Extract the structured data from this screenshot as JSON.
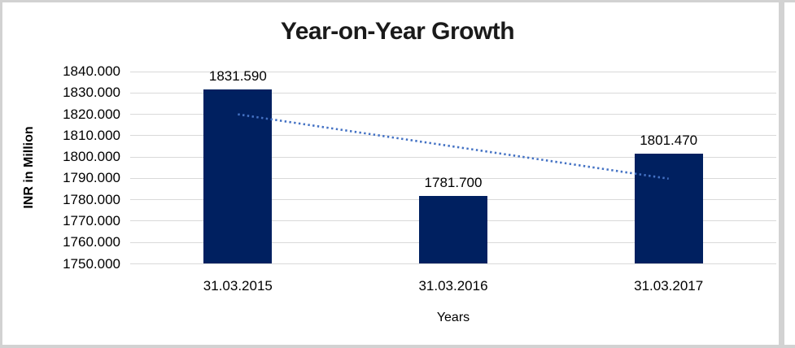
{
  "chart_data": {
    "type": "bar",
    "title": "Year-on-Year Growth",
    "xlabel": "Years",
    "ylabel": "INR in Million",
    "categories": [
      "31.03.2015",
      "31.03.2016",
      "31.03.2017"
    ],
    "values": [
      1831.59,
      1781.7,
      1801.47
    ],
    "data_labels": [
      "1831.590",
      "1781.700",
      "1801.470"
    ],
    "ylim": [
      1750,
      1840
    ],
    "y_tick_step": 10,
    "y_tick_labels": [
      "1840.000",
      "1830.000",
      "1820.000",
      "1810.000",
      "1800.000",
      "1790.000",
      "1780.000",
      "1770.000",
      "1760.000",
      "1750.000"
    ],
    "grid": true,
    "legend": "none",
    "bar_color": "#002060",
    "gridline_color": "#d9d9d9",
    "frame_border_color": "#d2d2d2",
    "trendline": {
      "type": "linear",
      "style": "dotted",
      "color": "#4472c4",
      "start_value": 1819.98,
      "end_value": 1789.86
    }
  }
}
